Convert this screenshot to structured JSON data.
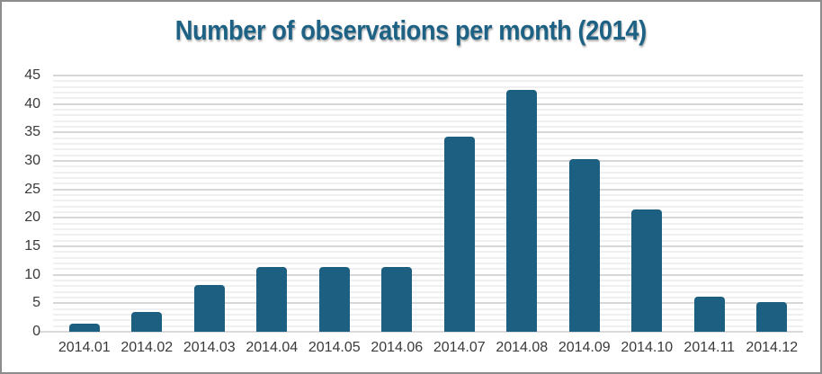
{
  "title": "Number of observations per month (2014)",
  "colors": {
    "bar": "#1d5f80",
    "title": "#1d6285",
    "grid_major": "#d7d7d7",
    "grid_minor": "#f0f0f0",
    "baseline": "#d9d9d9",
    "tick_text": "#3a3a3a",
    "panel_border": "#8d8d8d",
    "background": "#ffffff"
  },
  "chart_data": {
    "type": "bar",
    "title": "Number of observations per month (2014)",
    "categories": [
      "2014.01",
      "2014.02",
      "2014.03",
      "2014.04",
      "2014.05",
      "2014.06",
      "2014.07",
      "2014.08",
      "2014.09",
      "2014.10",
      "2014.11",
      "2014.12"
    ],
    "values": [
      1.4,
      3.4,
      8.2,
      11.3,
      11.3,
      11.3,
      34.3,
      42.4,
      30.3,
      21.4,
      6.2,
      5.2
    ],
    "xlabel": "",
    "ylabel": "",
    "ylim": [
      0,
      45
    ],
    "yticks": [
      0,
      5,
      10,
      15,
      20,
      25,
      30,
      35,
      40,
      45
    ],
    "minor_tick_step": 1,
    "grid": "horizontal-major-and-minor",
    "legend": "none",
    "bar_style": "rounded-top"
  }
}
